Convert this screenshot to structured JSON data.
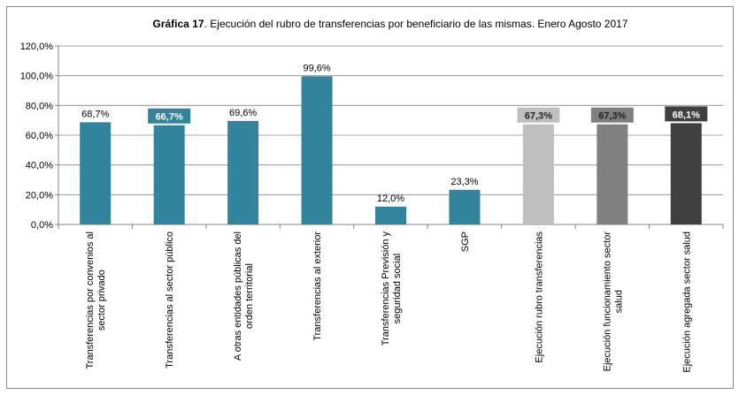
{
  "chart_data": {
    "type": "bar",
    "title": [
      "Gráfica 17",
      ". Ejecución del rubro de transferencias por beneficiario de las mismas. Enero Agosto 2017"
    ],
    "categories": [
      [
        "Transferencias por convenios al",
        "sector privado"
      ],
      [
        "Transferencias al sector público"
      ],
      [
        "A otras entidades públicas del",
        "orden territorial"
      ],
      [
        "Transferencias al exterior"
      ],
      [
        "Transferencias Previsión y",
        "seguridad social"
      ],
      [
        "SGP"
      ],
      [
        "Ejecución rubro transferencias"
      ],
      [
        "Ejecución funcionamiento sector",
        "salud"
      ],
      [
        "Ejecución agregada sector salud"
      ]
    ],
    "values": [
      68.7,
      66.7,
      69.6,
      99.6,
      12.0,
      23.3,
      67.3,
      67.3,
      68.1
    ],
    "value_labels": [
      "68,7%",
      "66,7%",
      "69,6%",
      "99,6%",
      "12,0%",
      "23,3%",
      "67,3%",
      "67,3%",
      "68,1%"
    ],
    "colors": [
      "#31849b",
      "#31849b",
      "#31849b",
      "#31849b",
      "#31849b",
      "#31849b",
      "#bfbfbf",
      "#808080",
      "#404040"
    ],
    "label_boxed": [
      false,
      true,
      false,
      false,
      false,
      false,
      true,
      true,
      true
    ],
    "ylim": [
      0,
      120
    ],
    "yticks": [
      {
        "value": 0,
        "label": "0,0%"
      },
      {
        "value": 20,
        "label": "20,0%"
      },
      {
        "value": 40,
        "label": "40,0%"
      },
      {
        "value": 60,
        "label": "60,0%"
      },
      {
        "value": 80,
        "label": "80,0%"
      },
      {
        "value": 100,
        "label": "100,0%"
      },
      {
        "value": 120,
        "label": "120,0%"
      }
    ],
    "grid": true
  }
}
